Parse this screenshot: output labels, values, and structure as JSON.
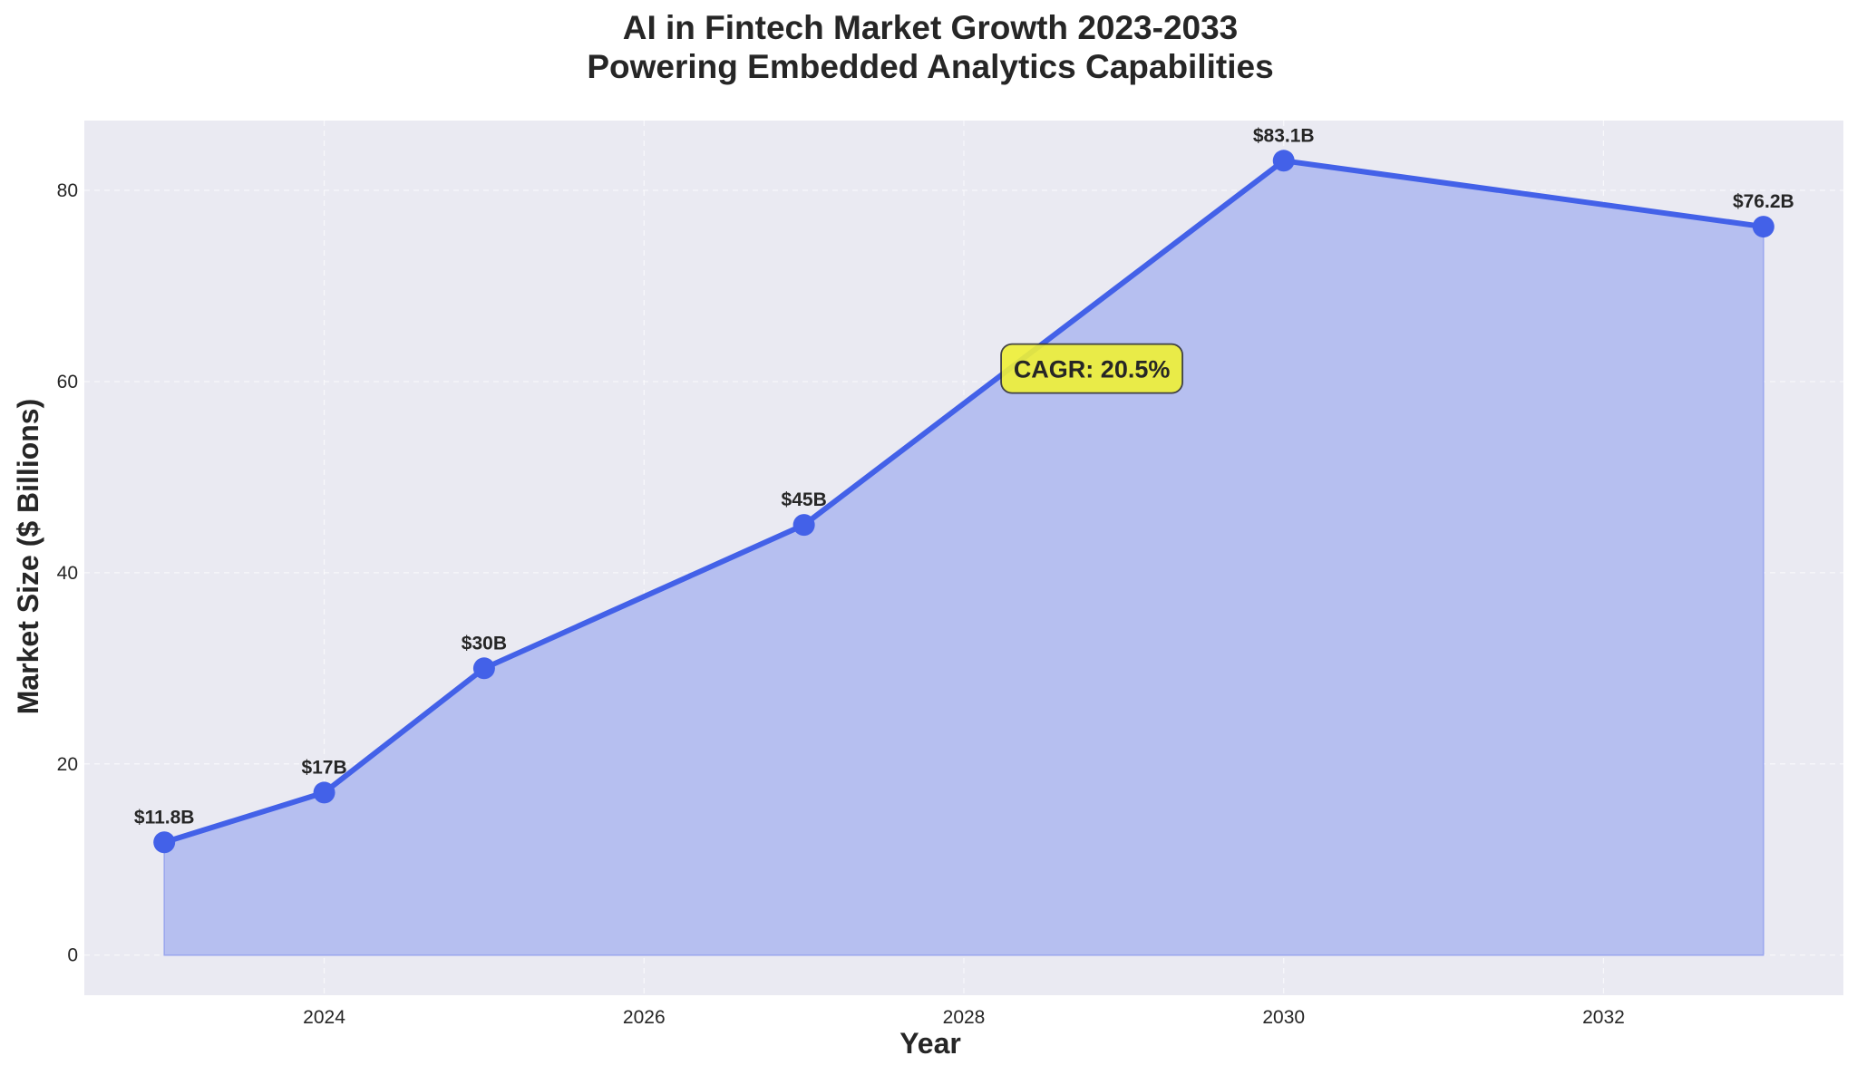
{
  "chart_data": {
    "type": "area",
    "title_line1": "AI in Fintech Market Growth 2023-2033",
    "title_line2": "Powering Embedded Analytics Capabilities",
    "xlabel": "Year",
    "ylabel": "Market Size ($ Billions)",
    "x": [
      2023,
      2024,
      2025,
      2027,
      2030,
      2033
    ],
    "values": [
      11.8,
      17,
      30,
      45,
      83.1,
      76.2
    ],
    "data_labels": [
      "$11.8B",
      "$17B",
      "$30B",
      "$45B",
      "$83.1B",
      "$76.2B"
    ],
    "xlim": [
      2022.5,
      2033.5
    ],
    "ylim": [
      -4.2,
      87.3
    ],
    "x_ticks": [
      2024,
      2026,
      2028,
      2030,
      2032
    ],
    "y_ticks": [
      0,
      20,
      40,
      60,
      80
    ],
    "grid": true,
    "annotation": {
      "text": "CAGR: 20.5%",
      "x": 2028.8,
      "y": 60.5
    },
    "colors": {
      "line": "#4361e8",
      "fill": "#b6bff0",
      "plot_background": "#eaeaf2",
      "annotation_box": "#eff036",
      "annotation_border": "#333333"
    }
  }
}
